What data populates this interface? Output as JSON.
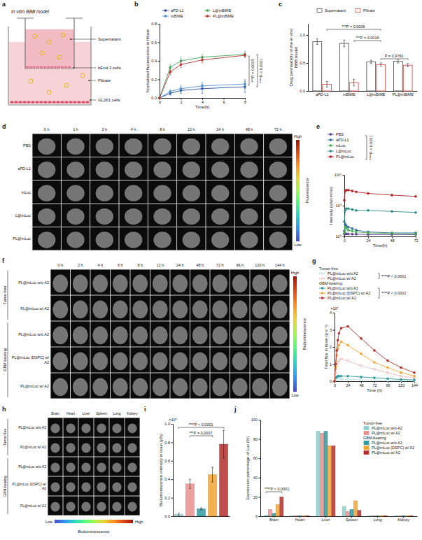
{
  "diagram": {
    "letter": "a",
    "title": "In vitro BBB model",
    "labels": [
      "Supernatant",
      "bEnd.3 cells",
      "Filtrate",
      "GL261 cells"
    ]
  },
  "chart_data": [
    {
      "letter": "b",
      "type": "line",
      "x_label": "Time(h)",
      "y_label": "Normalized fluorescence in filtrate",
      "x": [
        0,
        1,
        2,
        4,
        8
      ],
      "xlim": [
        0,
        8
      ],
      "xticks": [
        0,
        2,
        4,
        6,
        8
      ],
      "ylim": [
        0,
        0.8
      ],
      "yticks": [
        {
          "value": 0,
          "label": "0.0"
        },
        {
          "value": 0.2,
          "label": "0.2"
        },
        {
          "value": 0.4,
          "label": "0.4"
        },
        {
          "value": 0.6,
          "label": "0.6"
        },
        {
          "value": 0.8,
          "label": "0.8"
        }
      ],
      "legend": "top",
      "series": [
        {
          "name": "aPD-L1",
          "color": "#2b4c9b",
          "marker": "circle",
          "values": [
            0,
            0.05,
            0.08,
            0.1,
            0.12
          ],
          "errors": [
            0,
            0.02,
            0.03,
            0.05,
            0.06
          ]
        },
        {
          "name": "mBiME",
          "color": "#4f8fd6",
          "marker": "circle",
          "values": [
            0,
            0.07,
            0.1,
            0.13,
            0.15
          ],
          "errors": [
            0,
            0.02,
            0.03,
            0.04,
            0.05
          ]
        },
        {
          "name": "L@mBiME",
          "color": "#3ea45a",
          "marker": "circle",
          "values": [
            0,
            0.33,
            0.4,
            0.44,
            0.47
          ],
          "errors": [
            0,
            0.03,
            0.03,
            0.03,
            0.03
          ]
        },
        {
          "name": "PL@mBiME",
          "color": "#b8312f",
          "marker": "circle",
          "values": [
            0,
            0.28,
            0.36,
            0.41,
            0.46
          ],
          "errors": [
            0,
            0.03,
            0.03,
            0.03,
            0.02
          ]
        }
      ],
      "annotations": [
        "***P = 0.0003",
        "****P < 0.0001"
      ]
    },
    {
      "letter": "c",
      "type": "bar",
      "y_label": "Drug permeability in the in vitro BBB model",
      "categories": [
        "aPD-L1",
        "mBiME",
        "L@mBiME",
        "PL@mBiME"
      ],
      "ylim": [
        0,
        1.2
      ],
      "yticks": [
        {
          "value": 0,
          "label": "0.0"
        },
        {
          "value": 0.5,
          "label": "0.5"
        },
        {
          "value": 1,
          "label": "1.0"
        }
      ],
      "legend": "top",
      "series": [
        {
          "name": "Supernatant",
          "color": "#555555",
          "values": [
            0.88,
            0.85,
            0.52,
            0.53
          ],
          "errors": [
            0.05,
            0.06,
            0.03,
            0.03
          ]
        },
        {
          "name": "Filtrate",
          "color": "#d9534f",
          "values": [
            0.12,
            0.15,
            0.47,
            0.46
          ],
          "errors": [
            0.05,
            0.06,
            0.03,
            0.03
          ]
        }
      ],
      "annotations": [
        "***P = 0.0006",
        "***P = 0.0016",
        "P = 0.9760"
      ]
    },
    {
      "letter": "e",
      "type": "line",
      "log": "y",
      "x_label": "Time(h)",
      "y_label": "Intensity (p/s/cm²/sr)",
      "x": [
        0,
        1,
        2,
        4,
        8,
        12,
        24,
        48,
        72
      ],
      "xlim": [
        0,
        72
      ],
      "xticks": [
        0,
        24,
        48,
        72
      ],
      "ylim": [
        100000000,
        10000000000
      ],
      "yticks": [
        {
          "value": 100000000,
          "label": "10⁸"
        },
        {
          "value": 1000000000,
          "label": "10⁹"
        },
        {
          "value": 10000000000,
          "label": "10¹⁰"
        }
      ],
      "legend": "top",
      "series": [
        {
          "name": "PBS",
          "color": "#5b3a8c",
          "marker": "circle",
          "values": [
            120000000,
            125000000,
            120000000,
            120000000,
            118000000,
            118000000,
            115000000,
            115000000,
            115000000
          ]
        },
        {
          "name": "aPD-L1",
          "color": "#2d6a9f",
          "marker": "circle",
          "values": [
            150000000,
            250000000,
            220000000,
            200000000,
            180000000,
            160000000,
            140000000,
            130000000,
            130000000
          ]
        },
        {
          "name": "mLuc",
          "color": "#4caf50",
          "marker": "circle",
          "values": [
            130000000,
            200000000,
            180000000,
            160000000,
            150000000,
            140000000,
            130000000,
            125000000,
            120000000
          ]
        },
        {
          "name": "L@mLuc",
          "color": "#2a8c8c",
          "marker": "circle",
          "values": [
            300000000,
            700000000,
            800000000,
            800000000,
            750000000,
            700000000,
            700000000,
            650000000,
            600000000
          ]
        },
        {
          "name": "PL@mLuc",
          "color": "#b22222",
          "marker": "circle",
          "values": [
            1500000000,
            3000000000,
            3200000000,
            3200000000,
            3000000000,
            2800000000,
            2500000000,
            2200000000,
            2000000000
          ]
        }
      ],
      "annotations": [
        "****P < 0.0001"
      ]
    },
    {
      "letter": "g",
      "type": "line",
      "x_label": "Time (h)",
      "y_label": "Total flux in brain (p s⁻¹)",
      "x": [
        0,
        2,
        4,
        6,
        8,
        12,
        24,
        48,
        72,
        96,
        120,
        144
      ],
      "xlim": [
        0,
        144
      ],
      "xticks": [
        0,
        24,
        48,
        72,
        96,
        120,
        144
      ],
      "ylim": [
        0,
        4
      ],
      "yticks": [
        0,
        1,
        2,
        3,
        4
      ],
      "legend": "top",
      "series": [
        {
          "name": "PL@mLuc w/o A2",
          "group": "Tumor-free",
          "color": "#8fd0cf",
          "marker": "open_circle",
          "line_style": "dashed",
          "values": [
            0,
            0.08,
            0.1,
            0.12,
            0.12,
            0.12,
            0.1,
            0.09,
            0.07,
            0.05,
            0.04,
            0.03
          ]
        },
        {
          "name": "PL@mLuc w/ A2",
          "group": "Tumor-free",
          "color": "#e8908c",
          "marker": "open_circle",
          "line_style": "dashed",
          "values": [
            0,
            0.5,
            0.9,
            1.1,
            1.2,
            1.3,
            1.2,
            0.9,
            0.7,
            0.5,
            0.3,
            0.2
          ]
        },
        {
          "name": "PL@mLuc w/o A2",
          "group": "GBM-bearing",
          "color": "#2f9aa0",
          "marker": "circle",
          "line_style": "solid",
          "values": [
            0,
            0.2,
            0.25,
            0.3,
            0.3,
            0.3,
            0.3,
            0.25,
            0.2,
            0.15,
            0.1,
            0.08
          ]
        },
        {
          "name": "PL@mLuc (DSPC) w/ A2",
          "group": "GBM-bearing",
          "color": "#f0a431",
          "marker": "circle",
          "line_style": "solid",
          "values": [
            0,
            0.8,
            1.5,
            1.9,
            2.1,
            2.3,
            2.1,
            1.6,
            1.1,
            0.8,
            0.5,
            0.3
          ]
        },
        {
          "name": "PL@mLuc w/ A2",
          "group": "GBM-bearing",
          "color": "#b2302d",
          "marker": "circle",
          "line_style": "solid",
          "values": [
            0,
            1.0,
            1.8,
            2.4,
            2.8,
            3.1,
            3.2,
            2.5,
            1.8,
            1.2,
            0.8,
            0.5
          ]
        }
      ],
      "annotations": [
        "×10⁶",
        "****P < 0.0001",
        "****P < 0.0001"
      ]
    },
    {
      "letter": "i",
      "type": "bar",
      "y_label": "Bioluminescence intensity in brain (p/s)",
      "categories": [
        null,
        null,
        null,
        null,
        null
      ],
      "values": [
        0.02,
        0.35,
        0.08,
        0.45,
        0.78
      ],
      "errors": [
        0.01,
        0.05,
        0.01,
        0.08,
        0.15
      ],
      "colors": [
        "#8fd0cf",
        "#e8908c",
        "#2f9aa0",
        "#f0a431",
        "#b2302d"
      ],
      "ylim": [
        0,
        1
      ],
      "yticks": [
        {
          "value": 0,
          "label": "0.0"
        },
        {
          "value": 0.2,
          "label": "0.2"
        },
        {
          "value": 0.4,
          "label": "0.4"
        },
        {
          "value": 0.6,
          "label": "0.6"
        },
        {
          "value": 0.8,
          "label": "0.8"
        },
        {
          "value": 1,
          "label": "1.0"
        }
      ],
      "annotations": [
        "×10⁶",
        "****P < 0.0001",
        "***P = 0.0007"
      ]
    },
    {
      "letter": "j",
      "type": "bar",
      "y_label": "Expression percentage of Luc (%)",
      "categories": [
        "Brain",
        "Heart",
        "Liver",
        "Spleen",
        "Lung",
        "Kidney"
      ],
      "ylim": [
        0,
        100
      ],
      "yticks": [
        0,
        20,
        40,
        60,
        80,
        100
      ],
      "legend": "top-right",
      "series": [
        {
          "name": "PL@mLuc w/o A2",
          "group": "Tumor-free",
          "color": "#8fd0cf",
          "values": [
            1,
            0.5,
            88,
            10,
            0.5,
            0.5
          ]
        },
        {
          "name": "PL@mLuc w/ A2",
          "group": "Tumor-free",
          "color": "#e8908c",
          "values": [
            7,
            0.5,
            86,
            5,
            0.5,
            0.5
          ]
        },
        {
          "name": "PL@mLuc w/o A2",
          "group": "GBM-bearing",
          "color": "#2f9aa0",
          "values": [
            3,
            0.5,
            88,
            7,
            0.5,
            0.5
          ]
        },
        {
          "name": "PL@mLuc (DSPC) w/ A2",
          "group": "GBM-bearing",
          "color": "#f0a431",
          "values": [
            12,
            0.5,
            73,
            16,
            0.5,
            0.5
          ]
        },
        {
          "name": "PL@mLuc w/ A2",
          "group": "GBM-bearing",
          "color": "#b2302d",
          "values": [
            20,
            0.5,
            73,
            6,
            0.5,
            0.5
          ]
        }
      ],
      "annotations": [
        "****P < 0.0001"
      ]
    }
  ],
  "image_panels": [
    {
      "letter": "d",
      "columns": [
        "0 h",
        "1 h",
        "2 h",
        "4 h",
        "8 h",
        "12 h",
        "24 h",
        "48 h",
        "72 h"
      ],
      "rows": [
        "PBS",
        "aPD-L1",
        "mLuc",
        "L@mLuc",
        "PL@mLuc"
      ],
      "colorbar": {
        "title": "Fluorescence",
        "high": "High",
        "low": "Low"
      }
    },
    {
      "letter": "f",
      "columns": [
        "0 h",
        "2 h",
        "4 h",
        "6 h",
        "8 h",
        "12 h",
        "24 h",
        "48 h",
        "72 h",
        "96 h",
        "120 h",
        "144 h"
      ],
      "row_groups": [
        {
          "label": "Tumor-free",
          "rows": [
            "PL@mLuc w/o A2",
            "PL@mLuc w/ A2"
          ]
        },
        {
          "label": "GBM-bearing",
          "rows": [
            "PL@mLuc w/o A2",
            "PL@mLuc (DSPC) w/ A2",
            "PL@mLuc w/ A2"
          ]
        }
      ],
      "colorbar": {
        "title": "Bioluminescence",
        "high": "High",
        "low": "Low"
      }
    },
    {
      "letter": "h",
      "columns": [
        "Brain",
        "Heart",
        "Liver",
        "Spleen",
        "Lung",
        "Kidney"
      ],
      "row_groups": [
        {
          "label": "Tumor-free",
          "rows": [
            "PL@mLuc w/o A2",
            "PL@mLuc w/ A2"
          ]
        },
        {
          "label": "GBM-bearing",
          "rows": [
            "PL@mLuc w/o A2",
            "PL@mLuc (DSPC) w/ A2",
            "PL@mLuc w/ A2"
          ]
        }
      ],
      "colorbar": {
        "title": "Bioluminescence",
        "high": "High",
        "low": "Low"
      }
    }
  ]
}
